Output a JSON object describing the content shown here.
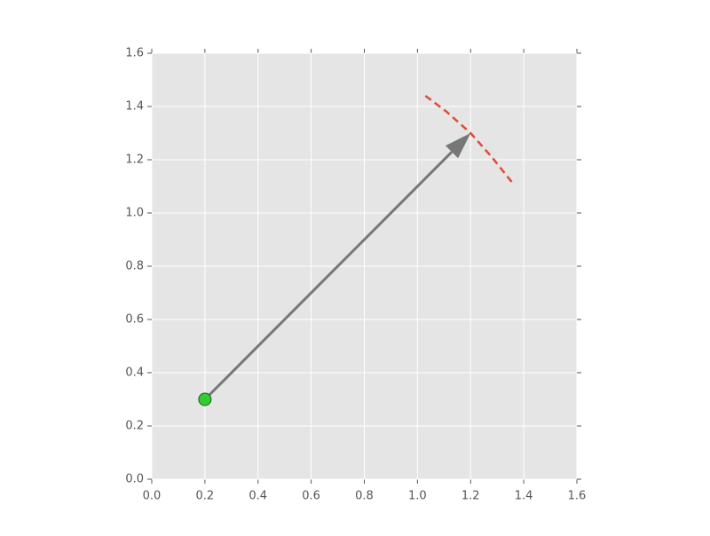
{
  "chart_data": {
    "type": "scatter",
    "xlim": [
      0,
      1.6
    ],
    "ylim": [
      0,
      1.6
    ],
    "xticks": [
      {
        "value": 0,
        "label": "0.0"
      },
      0.2,
      0.4,
      0.6,
      0.8,
      {
        "value": 1,
        "label": "1.0"
      },
      1.2,
      1.4,
      1.6
    ],
    "yticks": [
      {
        "value": 0,
        "label": "0.0"
      },
      0.2,
      0.4,
      0.6,
      0.8,
      {
        "value": 1,
        "label": "1.0"
      },
      1.2,
      1.4,
      1.6
    ],
    "grid": true,
    "background": "#e5e5e5",
    "series": [
      {
        "type": "scatter",
        "color": "#33cc33",
        "x": [
          0.2
        ],
        "y": [
          0.3
        ]
      },
      {
        "type": "arrow",
        "color": "#777777",
        "x": [
          0.2,
          1.2
        ],
        "y": [
          0.3,
          1.3
        ]
      },
      {
        "type": "line",
        "color": "#e24a33",
        "linestyle": "dashed",
        "x": [
          1.03,
          1.11,
          1.2,
          1.28,
          1.36
        ],
        "y": [
          1.44,
          1.38,
          1.3,
          1.21,
          1.11
        ]
      }
    ]
  }
}
